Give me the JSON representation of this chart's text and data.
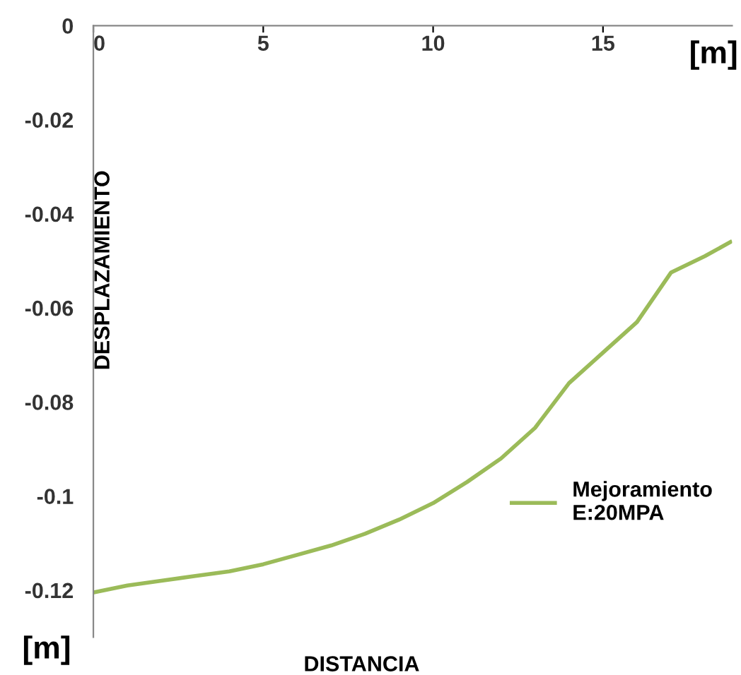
{
  "chart_data": {
    "type": "line",
    "xlabel": "DISTANCIA",
    "ylabel": "DESPLAZAMIENTO",
    "annotations": [
      "[m]",
      "[m]"
    ],
    "x": [
      0,
      1,
      2,
      3,
      4,
      5,
      6,
      7,
      8,
      9,
      10,
      11,
      12,
      13,
      14,
      15,
      16,
      17,
      18,
      18.75
    ],
    "series": [
      {
        "name": "Mejoramiento\nE:20MPA",
        "color": "#9bbb59",
        "values": [
          -0.1205,
          -0.119,
          -0.118,
          -0.117,
          -0.116,
          -0.1145,
          -0.1125,
          -0.1105,
          -0.108,
          -0.105,
          -0.1015,
          -0.097,
          -0.092,
          -0.0855,
          -0.076,
          -0.0695,
          -0.063,
          -0.0525,
          -0.049,
          -0.046
        ]
      }
    ],
    "xlim": [
      0,
      18.8
    ],
    "xticks": [
      0,
      5,
      10,
      15
    ],
    "ylim": [
      -0.13,
      0
    ],
    "yticks": [
      {
        "value": 0,
        "label": "0"
      },
      {
        "value": -0.02,
        "label": "-0.02"
      },
      {
        "value": -0.04,
        "label": "-0.04"
      },
      {
        "value": -0.06,
        "label": "-0.06"
      },
      {
        "value": -0.08,
        "label": "-0.08"
      },
      {
        "value": -0.1,
        "label": "-0.1"
      },
      {
        "value": -0.12,
        "label": "-0.12"
      }
    ],
    "grid": false,
    "legend": "right",
    "marker": "none",
    "line_style": "solid"
  }
}
